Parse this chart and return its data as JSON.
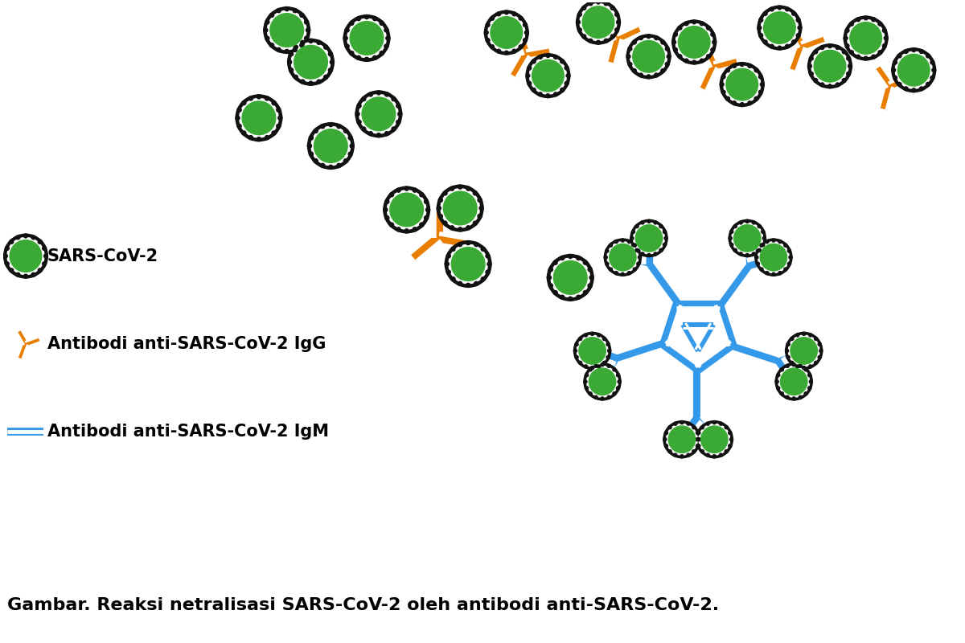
{
  "bg_color": "#ffffff",
  "virus_color": "#3aaa35",
  "virus_outline_color": "#111111",
  "igG_color": "#e87d00",
  "igM_color": "#3399e8",
  "igM_center_color": "#7ab8e0",
  "text_color": "#000000",
  "label_sars": "SARS-CoV-2",
  "label_igg": "Antibodi anti-SARS-CoV-2 IgG",
  "label_igm": "Antibodi anti-SARS-CoV-2 IgM",
  "caption": "Gambar. Reaksi netralisasi SARS-CoV-2 oleh antibodi anti-SARS-CoV-2.",
  "label_fontsize": 15,
  "caption_fontsize": 16
}
